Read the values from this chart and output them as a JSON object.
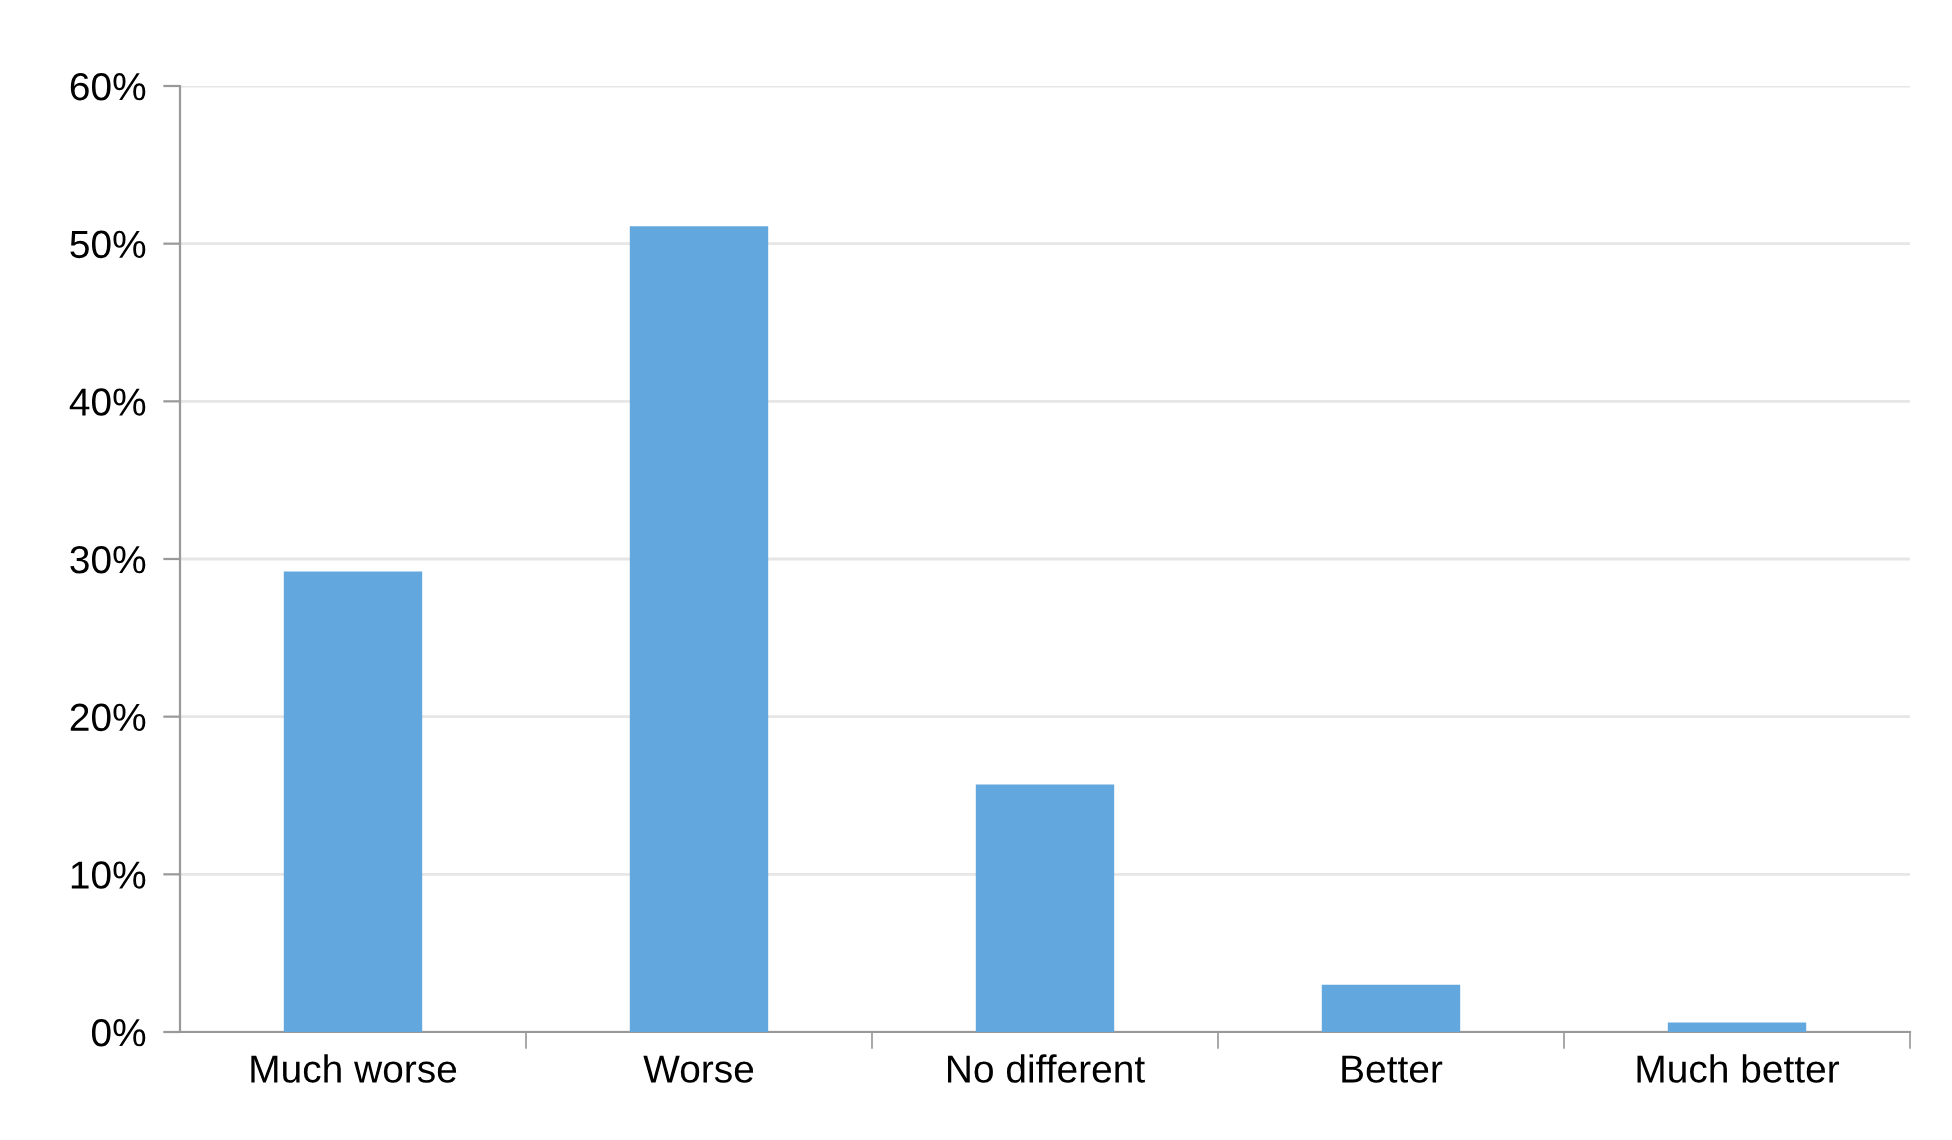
{
  "chart_data": {
    "type": "bar",
    "categories": [
      "Much worse",
      "Worse",
      "No different",
      "Better",
      "Much better"
    ],
    "values": [
      29.2,
      51.1,
      15.7,
      3.0,
      0.6
    ],
    "color": "#62a8de",
    "ylim": [
      0,
      60
    ],
    "yticks": [
      {
        "value": 0,
        "label": "0%"
      },
      {
        "value": 10,
        "label": "10%"
      },
      {
        "value": 20,
        "label": "20%"
      },
      {
        "value": 30,
        "label": "30%"
      },
      {
        "value": 40,
        "label": "40%"
      },
      {
        "value": 50,
        "label": "50%"
      },
      {
        "value": 60,
        "label": "60%"
      }
    ],
    "grid": "y"
  }
}
